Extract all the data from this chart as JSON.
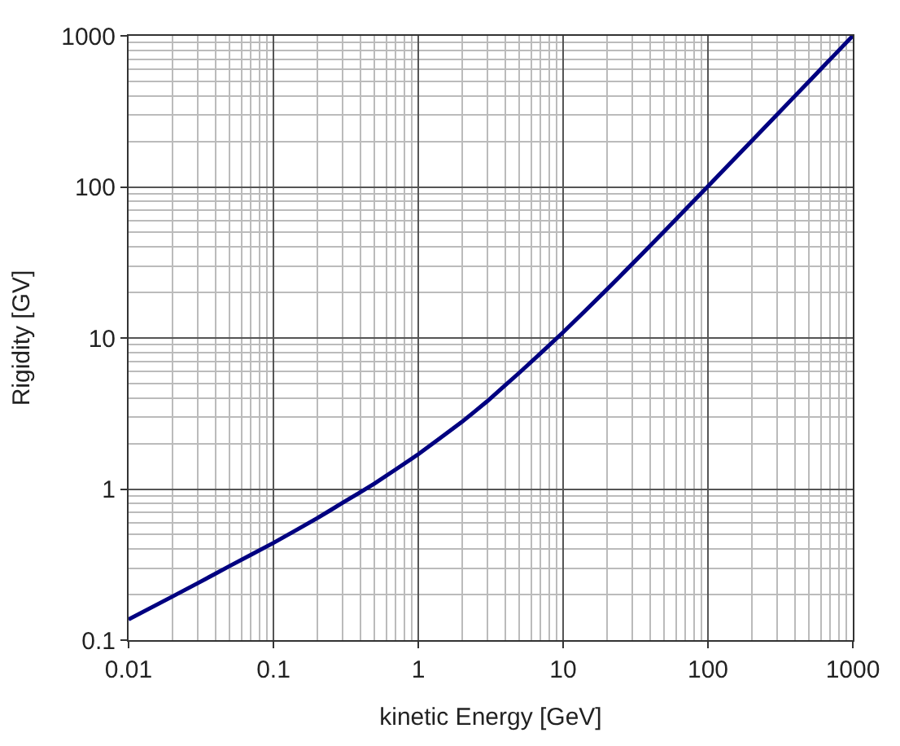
{
  "chart_data": {
    "type": "line",
    "xlabel": "kinetic Energy [GeV]",
    "ylabel": "Rigidity [GV]",
    "log": "xy",
    "grid": true,
    "legend": false,
    "marker": "none",
    "line_style": "solid",
    "xlim": [
      0.01,
      1000
    ],
    "ylim": [
      0.1,
      1000
    ],
    "xticks": [
      0.01,
      0.1,
      1,
      10,
      100,
      1000
    ],
    "yticks": [
      0.1,
      1,
      10,
      100,
      1000
    ],
    "x": [
      0.01,
      0.02,
      0.03,
      0.05,
      0.1,
      0.2,
      0.3,
      0.5,
      1,
      2,
      3,
      5,
      10,
      20,
      30,
      50,
      100,
      200,
      300,
      500,
      1000
    ],
    "series": [
      {
        "color": "#000080",
        "values": [
          0.137,
          0.194,
          0.238,
          0.31,
          0.44,
          0.64,
          0.81,
          1.09,
          1.7,
          2.78,
          3.82,
          5.9,
          10.9,
          20.9,
          30.9,
          50.9,
          101,
          201,
          301,
          501,
          1000
        ]
      }
    ]
  }
}
